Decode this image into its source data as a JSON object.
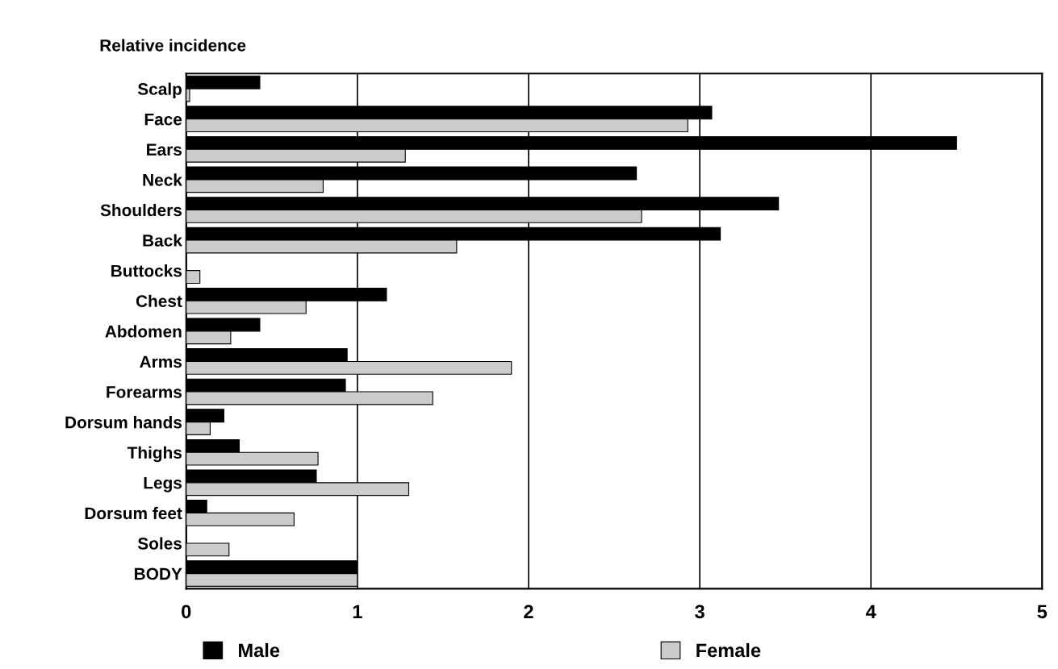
{
  "chart_data": {
    "type": "bar",
    "orientation": "horizontal",
    "title": "Relative incidence",
    "categories": [
      "Scalp",
      "Face",
      "Ears",
      "Neck",
      "Shoulders",
      "Back",
      "Buttocks",
      "Chest",
      "Abdomen",
      "Arms",
      "Forearms",
      "Dorsum hands",
      "Thighs",
      "Legs",
      "Dorsum feet",
      "Soles",
      "BODY"
    ],
    "series": [
      {
        "name": "Male",
        "color": "#000000",
        "values": [
          0.43,
          3.07,
          4.5,
          2.63,
          3.46,
          3.12,
          0,
          1.17,
          0.43,
          0.94,
          0.93,
          0.22,
          0.31,
          0.76,
          0.12,
          0,
          1.0
        ]
      },
      {
        "name": "Female",
        "color": "#cccccc",
        "values": [
          0.02,
          2.93,
          1.28,
          0.8,
          2.66,
          1.58,
          0.08,
          0.7,
          0.26,
          1.9,
          1.44,
          0.14,
          0.77,
          1.3,
          0.63,
          0.25,
          1.0
        ]
      }
    ],
    "xlim": [
      0,
      5
    ],
    "xticks": [
      0,
      1,
      2,
      3,
      4,
      5
    ],
    "grid": "x",
    "legend": "bottom"
  }
}
